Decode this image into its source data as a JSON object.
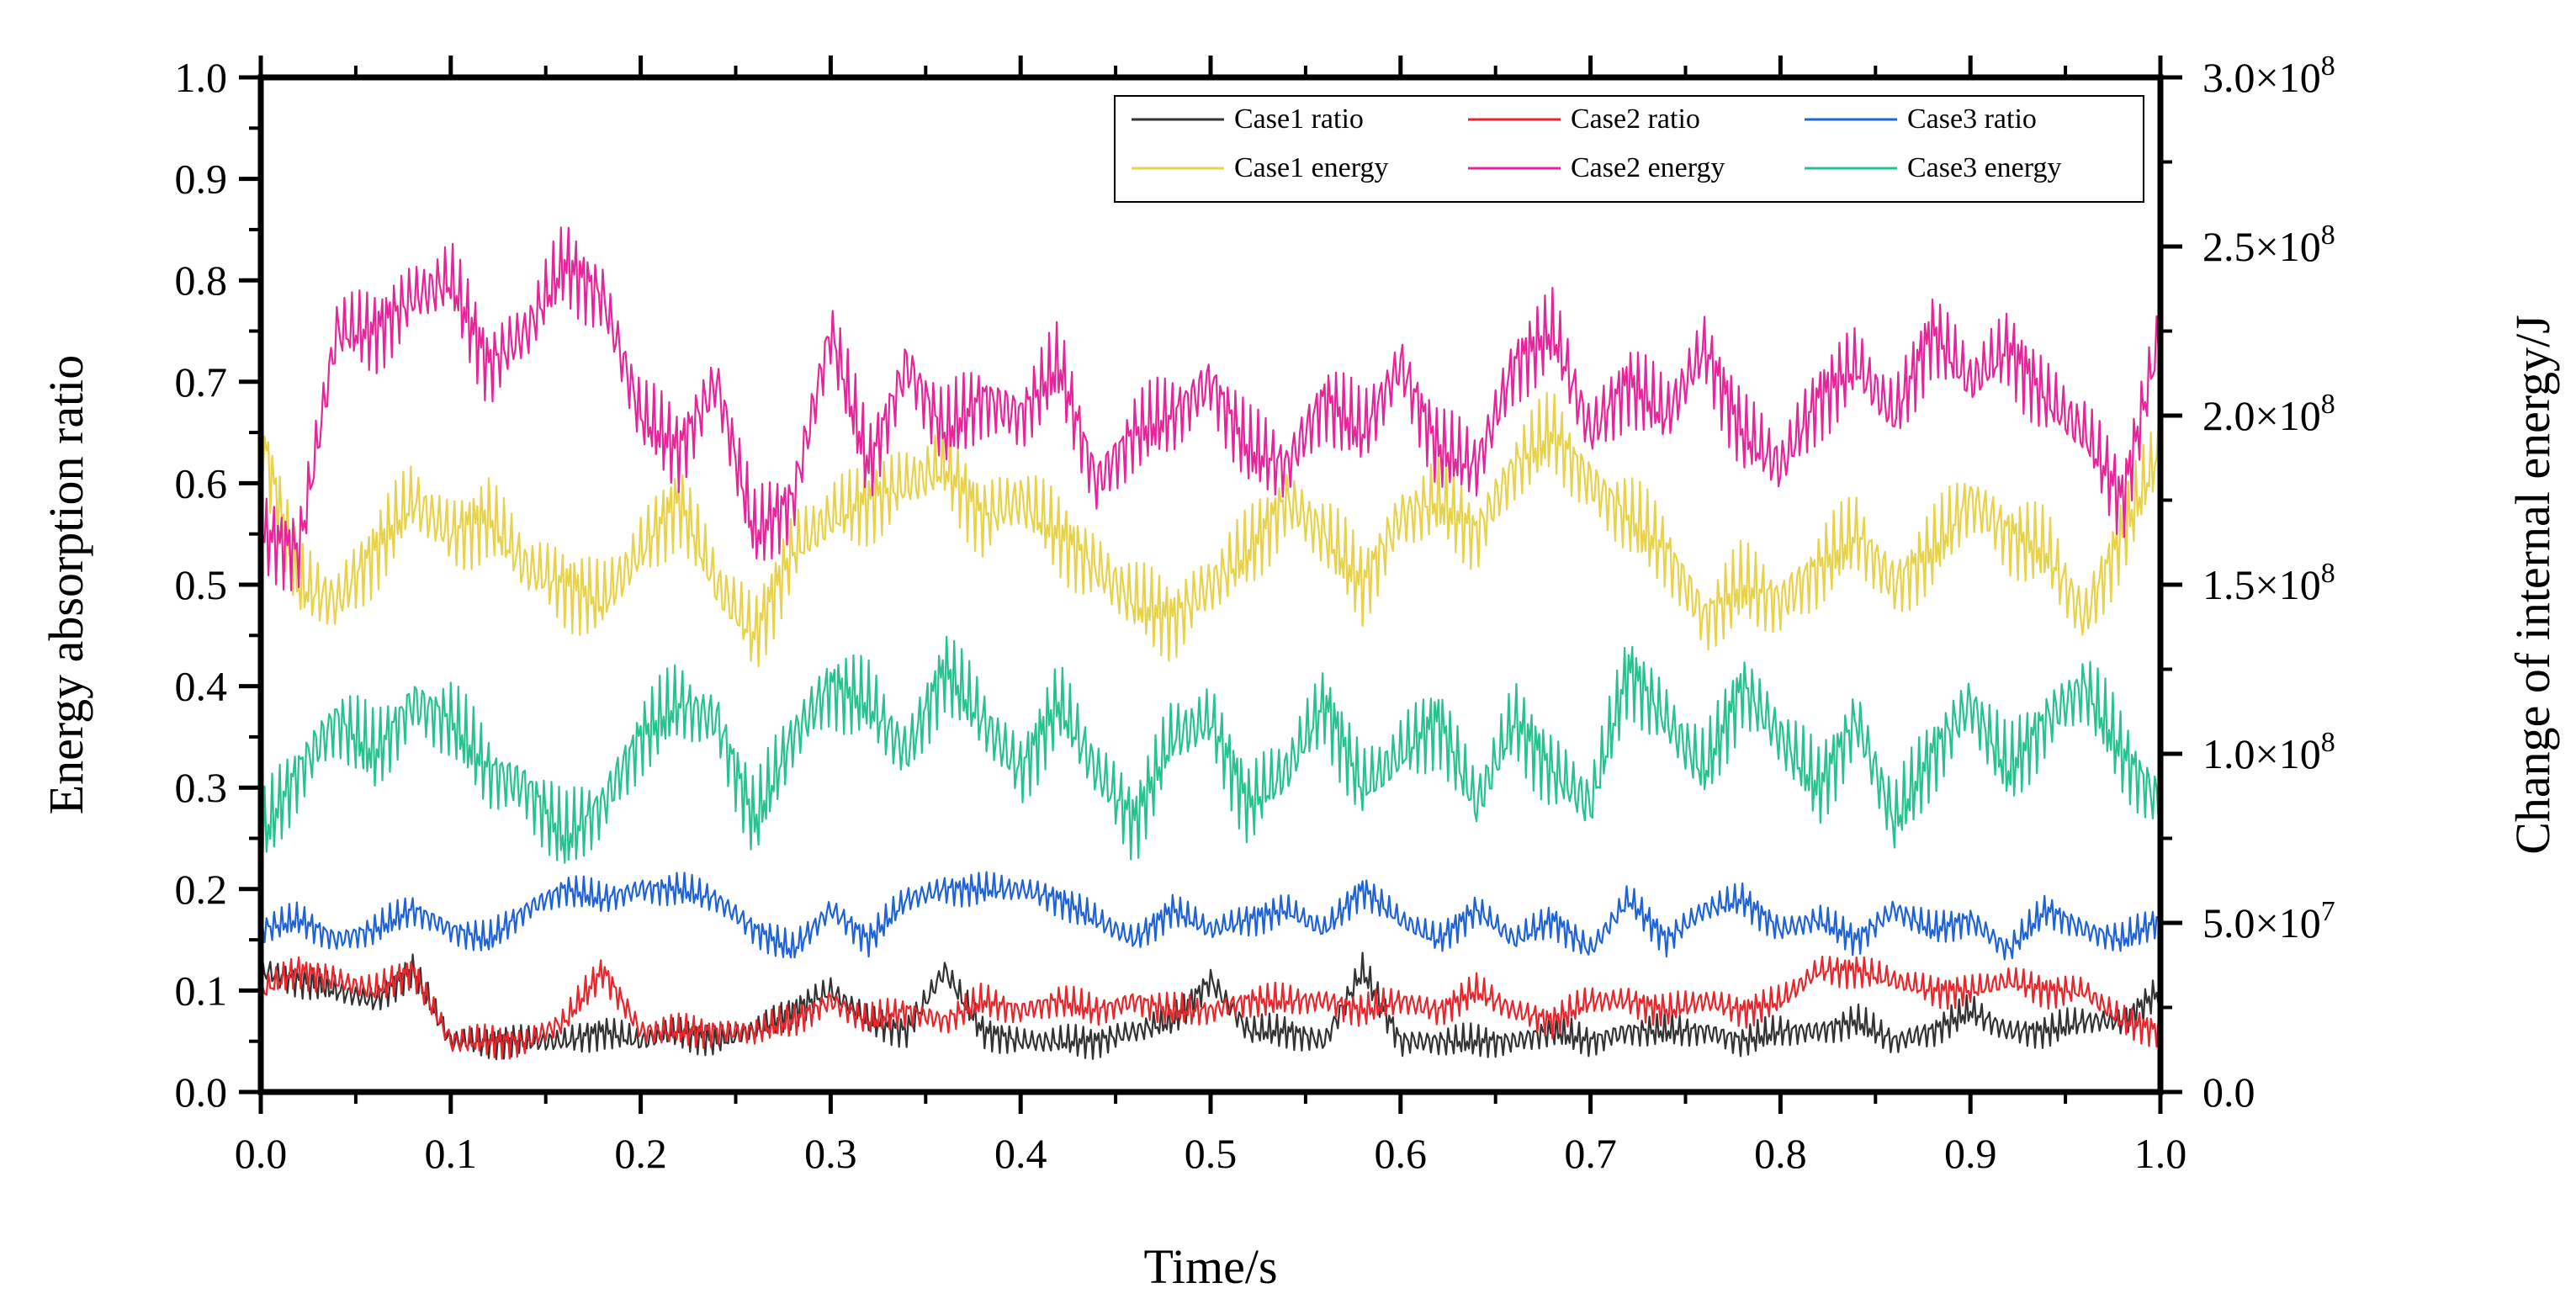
{
  "chart_data": {
    "type": "line",
    "title": "",
    "xlabel": "Time/s",
    "ylabel": "Energy absorption ratio",
    "y2label": "Change of internal energy/J",
    "xlim": [
      0.0,
      1.0
    ],
    "ylim": [
      0.0,
      1.0
    ],
    "y2lim": [
      0,
      300000000
    ],
    "x_ticks": [
      "0.0",
      "0.1",
      "0.2",
      "0.3",
      "0.4",
      "0.5",
      "0.6",
      "0.7",
      "0.8",
      "0.9",
      "1.0"
    ],
    "y_ticks": [
      "0.0",
      "0.1",
      "0.2",
      "0.3",
      "0.4",
      "0.5",
      "0.6",
      "0.7",
      "0.8",
      "0.9",
      "1.0"
    ],
    "y2_ticks": [
      {
        "mantissa": "0.0",
        "exp": ""
      },
      {
        "mantissa": "5.0×10",
        "exp": "7"
      },
      {
        "mantissa": "1.0×10",
        "exp": "8"
      },
      {
        "mantissa": "1.5×10",
        "exp": "8"
      },
      {
        "mantissa": "2.0×10",
        "exp": "8"
      },
      {
        "mantissa": "2.5×10",
        "exp": "8"
      },
      {
        "mantissa": "3.0×10",
        "exp": "8"
      }
    ],
    "legend_position": "top-right",
    "series": [
      {
        "name": "Case1 ratio",
        "axis": "left",
        "color": "#333333",
        "x": [
          0.0,
          0.02,
          0.04,
          0.06,
          0.08,
          0.1,
          0.12,
          0.14,
          0.16,
          0.18,
          0.2,
          0.22,
          0.24,
          0.26,
          0.28,
          0.3,
          0.32,
          0.34,
          0.36,
          0.38,
          0.4,
          0.42,
          0.44,
          0.46,
          0.48,
          0.5,
          0.52,
          0.54,
          0.56,
          0.58,
          0.6,
          0.62,
          0.64,
          0.66,
          0.68,
          0.7,
          0.72,
          0.74,
          0.76,
          0.78,
          0.8,
          0.82,
          0.84,
          0.86,
          0.88,
          0.9,
          0.92,
          0.94,
          0.96,
          0.98,
          1.0
        ],
        "y": [
          0.12,
          0.11,
          0.1,
          0.09,
          0.12,
          0.05,
          0.05,
          0.05,
          0.05,
          0.06,
          0.05,
          0.06,
          0.05,
          0.06,
          0.08,
          0.1,
          0.07,
          0.06,
          0.12,
          0.06,
          0.05,
          0.05,
          0.05,
          0.06,
          0.07,
          0.11,
          0.06,
          0.06,
          0.05,
          0.12,
          0.05,
          0.05,
          0.05,
          0.05,
          0.06,
          0.05,
          0.06,
          0.06,
          0.06,
          0.05,
          0.06,
          0.06,
          0.07,
          0.05,
          0.06,
          0.08,
          0.06,
          0.06,
          0.07,
          0.07,
          0.1
        ]
      },
      {
        "name": "Case2 ratio",
        "axis": "left",
        "color": "#e8262b",
        "x": [
          0.0,
          0.02,
          0.04,
          0.06,
          0.08,
          0.1,
          0.12,
          0.14,
          0.16,
          0.18,
          0.2,
          0.22,
          0.24,
          0.26,
          0.28,
          0.3,
          0.32,
          0.34,
          0.36,
          0.38,
          0.4,
          0.42,
          0.44,
          0.46,
          0.48,
          0.5,
          0.52,
          0.54,
          0.56,
          0.58,
          0.6,
          0.62,
          0.64,
          0.66,
          0.68,
          0.7,
          0.72,
          0.74,
          0.76,
          0.78,
          0.8,
          0.82,
          0.84,
          0.86,
          0.88,
          0.9,
          0.92,
          0.94,
          0.96,
          0.98,
          1.0
        ],
        "y": [
          0.1,
          0.12,
          0.11,
          0.1,
          0.12,
          0.05,
          0.05,
          0.05,
          0.07,
          0.12,
          0.06,
          0.06,
          0.06,
          0.06,
          0.07,
          0.09,
          0.07,
          0.08,
          0.07,
          0.09,
          0.08,
          0.09,
          0.08,
          0.09,
          0.08,
          0.08,
          0.09,
          0.09,
          0.09,
          0.08,
          0.09,
          0.08,
          0.1,
          0.08,
          0.07,
          0.09,
          0.09,
          0.08,
          0.09,
          0.08,
          0.09,
          0.12,
          0.12,
          0.11,
          0.1,
          0.1,
          0.11,
          0.1,
          0.1,
          0.07,
          0.06
        ]
      },
      {
        "name": "Case3 ratio",
        "axis": "left",
        "color": "#1f63d6",
        "x": [
          0.0,
          0.02,
          0.04,
          0.06,
          0.08,
          0.1,
          0.12,
          0.14,
          0.16,
          0.18,
          0.2,
          0.22,
          0.24,
          0.26,
          0.28,
          0.3,
          0.32,
          0.34,
          0.36,
          0.38,
          0.4,
          0.42,
          0.44,
          0.46,
          0.48,
          0.5,
          0.52,
          0.54,
          0.56,
          0.58,
          0.6,
          0.62,
          0.64,
          0.66,
          0.68,
          0.7,
          0.72,
          0.74,
          0.76,
          0.78,
          0.8,
          0.82,
          0.84,
          0.86,
          0.88,
          0.9,
          0.92,
          0.94,
          0.96,
          0.98,
          1.0
        ],
        "y": [
          0.16,
          0.17,
          0.15,
          0.16,
          0.18,
          0.16,
          0.15,
          0.18,
          0.2,
          0.19,
          0.2,
          0.2,
          0.19,
          0.16,
          0.14,
          0.18,
          0.15,
          0.19,
          0.2,
          0.2,
          0.2,
          0.19,
          0.17,
          0.15,
          0.18,
          0.16,
          0.17,
          0.18,
          0.16,
          0.2,
          0.17,
          0.15,
          0.18,
          0.15,
          0.17,
          0.14,
          0.19,
          0.15,
          0.18,
          0.19,
          0.16,
          0.17,
          0.15,
          0.18,
          0.16,
          0.17,
          0.14,
          0.18,
          0.16,
          0.15,
          0.17
        ]
      },
      {
        "name": "Case1 energy",
        "axis": "right",
        "color": "#e8d24a",
        "x": [
          0.0,
          0.02,
          0.04,
          0.06,
          0.08,
          0.1,
          0.12,
          0.14,
          0.16,
          0.18,
          0.2,
          0.22,
          0.24,
          0.26,
          0.28,
          0.3,
          0.32,
          0.34,
          0.36,
          0.38,
          0.4,
          0.42,
          0.44,
          0.46,
          0.48,
          0.5,
          0.52,
          0.54,
          0.56,
          0.58,
          0.6,
          0.62,
          0.64,
          0.66,
          0.68,
          0.7,
          0.72,
          0.74,
          0.76,
          0.78,
          0.8,
          0.82,
          0.84,
          0.86,
          0.88,
          0.9,
          0.92,
          0.94,
          0.96,
          0.98,
          1.0
        ],
        "y": [
          195000000,
          150000000,
          145000000,
          160000000,
          175000000,
          165000000,
          170000000,
          155000000,
          150000000,
          145000000,
          160000000,
          175000000,
          150000000,
          135000000,
          160000000,
          170000000,
          175000000,
          180000000,
          185000000,
          170000000,
          175000000,
          165000000,
          155000000,
          145000000,
          140000000,
          150000000,
          160000000,
          175000000,
          165000000,
          150000000,
          170000000,
          175000000,
          165000000,
          185000000,
          195000000,
          180000000,
          170000000,
          160000000,
          140000000,
          150000000,
          145000000,
          155000000,
          165000000,
          150000000,
          160000000,
          175000000,
          165000000,
          160000000,
          140000000,
          165000000,
          190000000
        ]
      },
      {
        "name": "Case2 energy",
        "axis": "right",
        "color": "#e8249a",
        "x": [
          0.0,
          0.02,
          0.04,
          0.06,
          0.08,
          0.1,
          0.12,
          0.14,
          0.16,
          0.18,
          0.2,
          0.22,
          0.24,
          0.26,
          0.28,
          0.3,
          0.32,
          0.34,
          0.36,
          0.38,
          0.4,
          0.42,
          0.44,
          0.46,
          0.48,
          0.5,
          0.52,
          0.54,
          0.56,
          0.58,
          0.6,
          0.62,
          0.64,
          0.66,
          0.68,
          0.7,
          0.72,
          0.74,
          0.76,
          0.78,
          0.8,
          0.82,
          0.84,
          0.86,
          0.88,
          0.9,
          0.92,
          0.94,
          0.96,
          0.98,
          1.0
        ],
        "y": [
          165000000,
          160000000,
          225000000,
          225000000,
          235000000,
          240000000,
          215000000,
          225000000,
          245000000,
          235000000,
          200000000,
          190000000,
          210000000,
          165000000,
          175000000,
          225000000,
          185000000,
          215000000,
          195000000,
          205000000,
          200000000,
          215000000,
          180000000,
          195000000,
          200000000,
          210000000,
          190000000,
          185000000,
          205000000,
          195000000,
          215000000,
          190000000,
          185000000,
          215000000,
          225000000,
          195000000,
          210000000,
          200000000,
          220000000,
          195000000,
          185000000,
          205000000,
          215000000,
          200000000,
          225000000,
          210000000,
          220000000,
          205000000,
          195000000,
          175000000,
          225000000
        ]
      },
      {
        "name": "Case3 energy",
        "axis": "right",
        "color": "#27c38e",
        "x": [
          0.0,
          0.02,
          0.04,
          0.06,
          0.08,
          0.1,
          0.12,
          0.14,
          0.16,
          0.18,
          0.2,
          0.22,
          0.24,
          0.26,
          0.28,
          0.3,
          0.32,
          0.34,
          0.36,
          0.38,
          0.4,
          0.42,
          0.44,
          0.46,
          0.48,
          0.5,
          0.52,
          0.54,
          0.56,
          0.58,
          0.6,
          0.62,
          0.64,
          0.66,
          0.68,
          0.7,
          0.72,
          0.74,
          0.76,
          0.78,
          0.8,
          0.82,
          0.84,
          0.86,
          0.88,
          0.9,
          0.92,
          0.94,
          0.96,
          0.98,
          1.0
        ],
        "y": [
          75000000,
          95000000,
          110000000,
          100000000,
          115000000,
          110000000,
          95000000,
          90000000,
          75000000,
          85000000,
          105000000,
          115000000,
          110000000,
          80000000,
          105000000,
          120000000,
          115000000,
          100000000,
          125000000,
          110000000,
          95000000,
          115000000,
          95000000,
          80000000,
          105000000,
          110000000,
          85000000,
          95000000,
          115000000,
          90000000,
          100000000,
          110000000,
          85000000,
          110000000,
          95000000,
          85000000,
          125000000,
          110000000,
          95000000,
          120000000,
          105000000,
          90000000,
          110000000,
          80000000,
          100000000,
          115000000,
          95000000,
          110000000,
          120000000,
          100000000,
          85000000
        ]
      }
    ]
  }
}
